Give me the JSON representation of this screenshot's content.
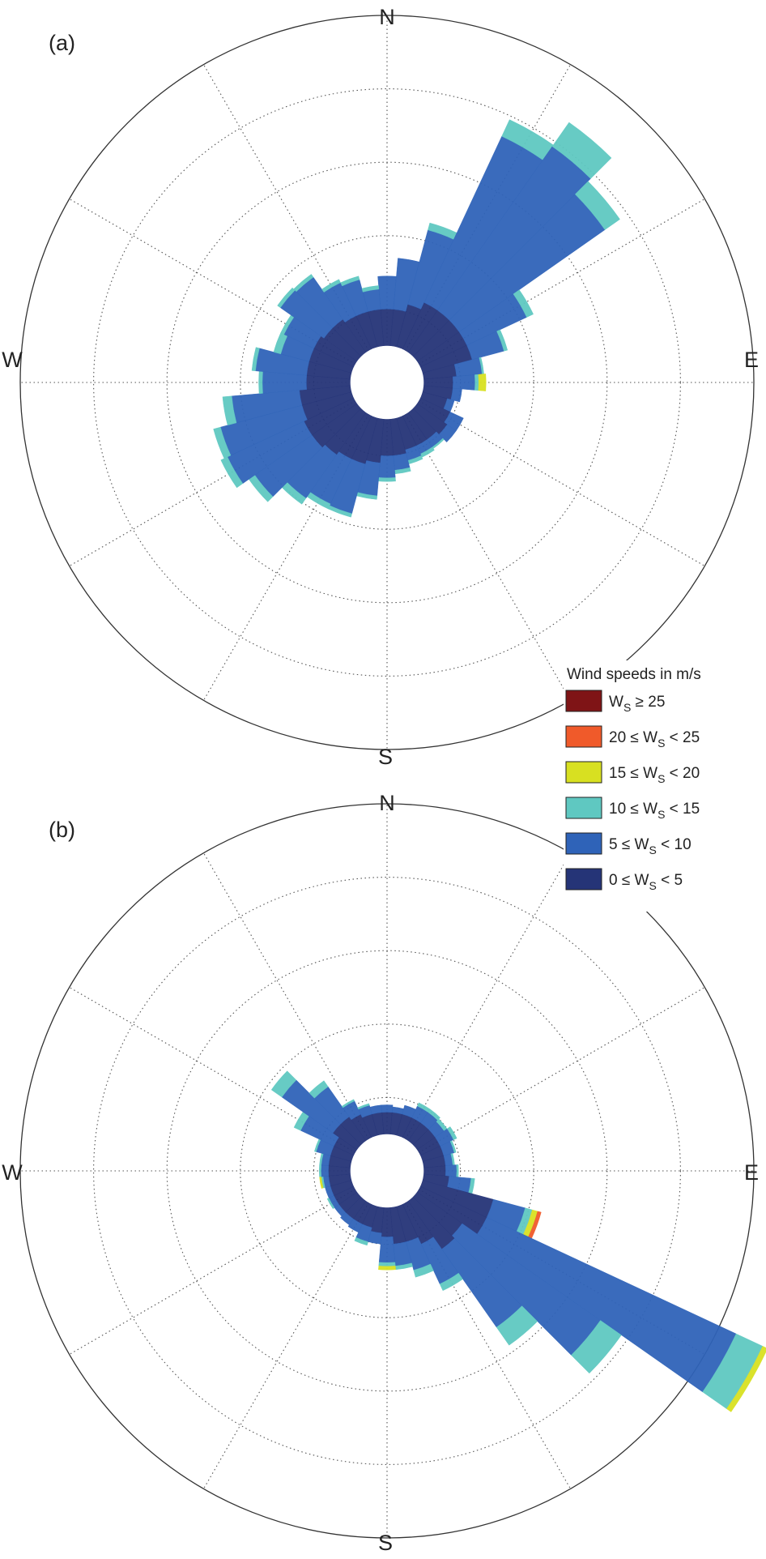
{
  "chart_data": [
    {
      "type": "wind-rose",
      "panel_label": "(a)",
      "directions_labels": {
        "n": "N",
        "e": "E",
        "s": "S",
        "w": "W"
      },
      "sector_width_deg": 10,
      "inner_hole_radius": 1,
      "radial_rings": [
        2,
        4,
        6,
        8,
        10
      ],
      "radial_max": 10,
      "spokes_every_deg": 30,
      "grid": true,
      "legend_placement": "between panels, right",
      "bins": [
        "0 ≤ Ws < 5",
        "5 ≤ Ws < 10",
        "10 ≤ Ws < 15",
        "15 ≤ Ws < 20",
        "20 ≤ Ws < 25",
        "Ws ≥ 25"
      ],
      "sectors": [
        {
          "dir": 0,
          "v": [
            1.0,
            0.9,
            0.0,
            0,
            0,
            0
          ]
        },
        {
          "dir": 10,
          "v": [
            1.0,
            1.4,
            0.0,
            0,
            0,
            0
          ]
        },
        {
          "dir": 20,
          "v": [
            1.2,
            2.1,
            0.2,
            0,
            0,
            0
          ]
        },
        {
          "dir": 30,
          "v": [
            1.4,
            5.0,
            0.5,
            0,
            0,
            0
          ]
        },
        {
          "dir": 40,
          "v": [
            1.4,
            5.45,
            0.8,
            0,
            0,
            0
          ]
        },
        {
          "dir": 50,
          "v": [
            1.4,
            4.85,
            0.5,
            0,
            0,
            0
          ]
        },
        {
          "dir": 60,
          "v": [
            1.4,
            1.8,
            0.2,
            0,
            0,
            0
          ]
        },
        {
          "dir": 70,
          "v": [
            1.4,
            0.9,
            0.1,
            0,
            0,
            0
          ]
        },
        {
          "dir": 80,
          "v": [
            0.9,
            0.7,
            0.05,
            0,
            0,
            0
          ]
        },
        {
          "dir": 90,
          "v": [
            0.8,
            0.6,
            0.1,
            0.2,
            0,
            0
          ]
        },
        {
          "dir": 100,
          "v": [
            0.8,
            0.25,
            0.0,
            0,
            0,
            0
          ]
        },
        {
          "dir": 110,
          "v": [
            0.7,
            0.2,
            0.0,
            0,
            0,
            0
          ]
        },
        {
          "dir": 120,
          "v": [
            0.9,
            0.4,
            0.0,
            0,
            0,
            0
          ]
        },
        {
          "dir": 130,
          "v": [
            1.0,
            0.3,
            0.0,
            0,
            0,
            0
          ]
        },
        {
          "dir": 140,
          "v": [
            0.9,
            0.25,
            0.05,
            0,
            0,
            0
          ]
        },
        {
          "dir": 150,
          "v": [
            0.9,
            0.25,
            0.1,
            0,
            0,
            0
          ]
        },
        {
          "dir": 160,
          "v": [
            0.9,
            0.3,
            0.1,
            0,
            0,
            0
          ]
        },
        {
          "dir": 170,
          "v": [
            1.0,
            0.4,
            0.1,
            0,
            0,
            0
          ]
        },
        {
          "dir": 180,
          "v": [
            1.0,
            0.6,
            0.1,
            0,
            0,
            0
          ]
        },
        {
          "dir": 190,
          "v": [
            1.2,
            0.9,
            0.1,
            0,
            0,
            0
          ]
        },
        {
          "dir": 200,
          "v": [
            1.3,
            1.4,
            0.1,
            0,
            0,
            0
          ]
        },
        {
          "dir": 210,
          "v": [
            1.3,
            1.35,
            0.15,
            0,
            0,
            0
          ]
        },
        {
          "dir": 220,
          "v": [
            1.4,
            1.45,
            0.2,
            0,
            0,
            0
          ]
        },
        {
          "dir": 230,
          "v": [
            1.5,
            1.9,
            0.2,
            0,
            0,
            0
          ]
        },
        {
          "dir": 240,
          "v": [
            1.5,
            2.3,
            0.2,
            0,
            0,
            0
          ]
        },
        {
          "dir": 250,
          "v": [
            1.4,
            2.3,
            0.2,
            0,
            0,
            0
          ]
        },
        {
          "dir": 260,
          "v": [
            1.4,
            1.85,
            0.25,
            0,
            0,
            0
          ]
        },
        {
          "dir": 270,
          "v": [
            1.2,
            1.2,
            0.1,
            0,
            0,
            0
          ]
        },
        {
          "dir": 280,
          "v": [
            1.2,
            1.4,
            0.1,
            0,
            0,
            0
          ]
        },
        {
          "dir": 290,
          "v": [
            1.2,
            0.8,
            0.2,
            0,
            0,
            0
          ]
        },
        {
          "dir": 300,
          "v": [
            1.2,
            0.9,
            0.1,
            0,
            0,
            0
          ]
        },
        {
          "dir": 310,
          "v": [
            1.1,
            1.45,
            0.1,
            0,
            0,
            0
          ]
        },
        {
          "dir": 320,
          "v": [
            1.1,
            1.4,
            0.1,
            0,
            0,
            0
          ]
        },
        {
          "dir": 330,
          "v": [
            1.0,
            1.0,
            0.1,
            0,
            0,
            0
          ]
        },
        {
          "dir": 340,
          "v": [
            1.0,
            0.9,
            0.1,
            0,
            0,
            0
          ]
        },
        {
          "dir": 350,
          "v": [
            1.0,
            0.55,
            0.1,
            0,
            0,
            0
          ]
        }
      ]
    },
    {
      "type": "wind-rose",
      "panel_label": "(b)",
      "directions_labels": {
        "n": "N",
        "e": "E",
        "s": "S",
        "w": "W"
      },
      "sector_width_deg": 10,
      "inner_hole_radius": 1,
      "radial_rings": [
        2,
        4,
        6,
        8,
        10
      ],
      "radial_max": 10,
      "spokes_every_deg": 30,
      "grid": true,
      "bins": [
        "0 ≤ Ws < 5",
        "5 ≤ Ws < 10",
        "10 ≤ Ws < 15",
        "15 ≤ Ws < 20",
        "20 ≤ Ws < 25",
        "Ws ≥ 25"
      ],
      "sectors": [
        {
          "dir": 0,
          "v": [
            0.6,
            0.2,
            0.0,
            0,
            0,
            0
          ]
        },
        {
          "dir": 10,
          "v": [
            0.6,
            0.15,
            0.0,
            0,
            0,
            0
          ]
        },
        {
          "dir": 20,
          "v": [
            0.6,
            0.25,
            0.0,
            0,
            0,
            0
          ]
        },
        {
          "dir": 30,
          "v": [
            0.6,
            0.35,
            0.1,
            0,
            0,
            0
          ]
        },
        {
          "dir": 40,
          "v": [
            0.6,
            0.35,
            0.1,
            0,
            0,
            0
          ]
        },
        {
          "dir": 50,
          "v": [
            0.6,
            0.3,
            0.1,
            0,
            0,
            0
          ]
        },
        {
          "dir": 60,
          "v": [
            0.6,
            0.4,
            0.1,
            0,
            0,
            0
          ]
        },
        {
          "dir": 70,
          "v": [
            0.6,
            0.3,
            0.05,
            0,
            0,
            0
          ]
        },
        {
          "dir": 80,
          "v": [
            0.6,
            0.2,
            0.05,
            0,
            0,
            0
          ]
        },
        {
          "dir": 90,
          "v": [
            0.6,
            0.3,
            0.05,
            0,
            0,
            0
          ]
        },
        {
          "dir": 100,
          "v": [
            0.7,
            0.6,
            0.1,
            0,
            0,
            0
          ]
        },
        {
          "dir": 110,
          "v": [
            2.0,
            0.9,
            0.2,
            0.15,
            0.1,
            0
          ]
        },
        {
          "dir": 120,
          "v": [
            2.0,
            7.5,
            0.8,
            0.15,
            0,
            0
          ]
        },
        {
          "dir": 130,
          "v": [
            1.5,
            4.6,
            0.7,
            0,
            0,
            0
          ]
        },
        {
          "dir": 140,
          "v": [
            1.6,
            2.6,
            0.6,
            0,
            0,
            0
          ]
        },
        {
          "dir": 150,
          "v": [
            1.2,
            1.2,
            0.2,
            0,
            0,
            0
          ]
        },
        {
          "dir": 160,
          "v": [
            1.0,
            0.8,
            0.2,
            0,
            0,
            0
          ]
        },
        {
          "dir": 170,
          "v": [
            1.0,
            0.6,
            0.1,
            0,
            0,
            0
          ]
        },
        {
          "dir": 180,
          "v": [
            0.8,
            0.7,
            0.1,
            0.1,
            0,
            0
          ]
        },
        {
          "dir": 190,
          "v": [
            0.7,
            0.3,
            0.0,
            0,
            0,
            0
          ]
        },
        {
          "dir": 200,
          "v": [
            0.6,
            0.4,
            0.1,
            0,
            0,
            0
          ]
        },
        {
          "dir": 210,
          "v": [
            0.6,
            0.25,
            0.0,
            0,
            0,
            0
          ]
        },
        {
          "dir": 220,
          "v": [
            0.6,
            0.2,
            0.0,
            0,
            0,
            0
          ]
        },
        {
          "dir": 230,
          "v": [
            0.6,
            0.15,
            0.0,
            0,
            0,
            0
          ]
        },
        {
          "dir": 240,
          "v": [
            0.6,
            0.15,
            0.05,
            0,
            0,
            0
          ]
        },
        {
          "dir": 250,
          "v": [
            0.6,
            0.15,
            0.0,
            0,
            0,
            0
          ]
        },
        {
          "dir": 260,
          "v": [
            0.6,
            0.15,
            0.05,
            0.05,
            0,
            0
          ]
        },
        {
          "dir": 270,
          "v": [
            0.6,
            0.2,
            0.05,
            0,
            0,
            0
          ]
        },
        {
          "dir": 280,
          "v": [
            0.6,
            0.2,
            0.05,
            0,
            0,
            0
          ]
        },
        {
          "dir": 290,
          "v": [
            0.6,
            0.4,
            0.05,
            0,
            0,
            0
          ]
        },
        {
          "dir": 300,
          "v": [
            0.6,
            1.0,
            0.2,
            0,
            0,
            0
          ]
        },
        {
          "dir": 310,
          "v": [
            0.8,
            1.7,
            0.35,
            0,
            0,
            0
          ]
        },
        {
          "dir": 320,
          "v": [
            0.8,
            1.0,
            0.2,
            0,
            0,
            0
          ]
        },
        {
          "dir": 330,
          "v": [
            0.7,
            0.4,
            0.05,
            0,
            0,
            0
          ]
        },
        {
          "dir": 340,
          "v": [
            0.6,
            0.25,
            0.05,
            0,
            0,
            0
          ]
        },
        {
          "dir": 350,
          "v": [
            0.6,
            0.2,
            0.0,
            0,
            0,
            0
          ]
        }
      ]
    }
  ],
  "legend": {
    "title": "Wind speeds in m/s",
    "items": [
      {
        "pre": "W",
        "sub": "S",
        "post": " ≥ 25",
        "color": "#7f1416"
      },
      {
        "pre": "20 ≤ W",
        "sub": "S",
        "post": " < 25",
        "color": "#f05a2a"
      },
      {
        "pre": "15 ≤ W",
        "sub": "S",
        "post": " < 20",
        "color": "#d8e021"
      },
      {
        "pre": "10 ≤ W",
        "sub": "S",
        "post": " < 15",
        "color": "#5fc8c1"
      },
      {
        "pre": "5 ≤ W",
        "sub": "S",
        "post": " < 10",
        "color": "#2f63b8"
      },
      {
        "pre": "0 ≤ W",
        "sub": "S",
        "post": " < 5",
        "color": "#253477"
      }
    ]
  },
  "bin_colors": [
    "#253477",
    "#2f63b8",
    "#5fc8c1",
    "#d8e021",
    "#f05a2a",
    "#7f1416"
  ]
}
